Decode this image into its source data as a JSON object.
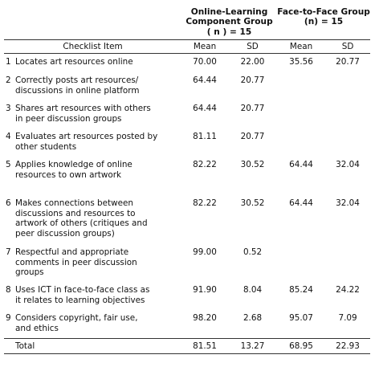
{
  "groups": {
    "online": [
      "Online-Learning",
      "Component Group",
      "( n ) = 15"
    ],
    "f2f": [
      "Face-to-Face Group",
      "(n) = 15"
    ]
  },
  "headers": {
    "item": "Checklist Item",
    "online_mean": "Mean",
    "online_sd": "SD",
    "f2f_mean": "Mean",
    "f2f_sd": "SD"
  },
  "rows": [
    {
      "num": "1",
      "lines": [
        "Locates art resources online"
      ],
      "om": "70.00",
      "osd": "22.00",
      "fm": "35.56",
      "fsd": "20.77"
    },
    {
      "num": "2",
      "lines": [
        "Correctly posts art resources/",
        "discussions in online platform"
      ],
      "om": "64.44",
      "osd": "20.77",
      "fm": "",
      "fsd": ""
    },
    {
      "num": "3",
      "lines": [
        "Shares art resources with others",
        "in peer discussion groups"
      ],
      "om": "64.44",
      "osd": "20.77",
      "fm": "",
      "fsd": ""
    },
    {
      "num": "4",
      "lines": [
        "Evaluates art resources posted by",
        "other students"
      ],
      "om": "81.11",
      "osd": "20.77",
      "fm": "",
      "fsd": ""
    },
    {
      "num": "5",
      "lines": [
        "Applies knowledge of online",
        "resources to own artwork"
      ],
      "om": "82.22",
      "osd": "30.52",
      "fm": "64.44",
      "fsd": "32.04"
    },
    {
      "num": "6",
      "lines": [
        "Makes connections between",
        "discussions and resources to",
        "artwork of others (critiques and",
        "peer discussion groups)"
      ],
      "om": "82.22",
      "osd": "30.52",
      "fm": "64.44",
      "fsd": "32.04"
    },
    {
      "num": "7",
      "lines": [
        "Respectful and appropriate",
        "comments in peer discussion",
        "groups"
      ],
      "om": "99.00",
      "osd": "0.52",
      "fm": "",
      "fsd": ""
    },
    {
      "num": "8",
      "lines": [
        "Uses ICT in face-to-face class as",
        "it relates to learning objectives"
      ],
      "om": "91.90",
      "osd": "8.04",
      "fm": "85.24",
      "fsd": "24.22"
    },
    {
      "num": "9",
      "lines": [
        "Considers copyright, fair use,",
        "and ethics"
      ],
      "om": "98.20",
      "osd": "2.68",
      "fm": "95.07",
      "fsd": "7.09"
    }
  ],
  "total": {
    "label": "Total",
    "om": "81.51",
    "osd": "13.27",
    "fm": "68.95",
    "fsd": "22.93"
  }
}
